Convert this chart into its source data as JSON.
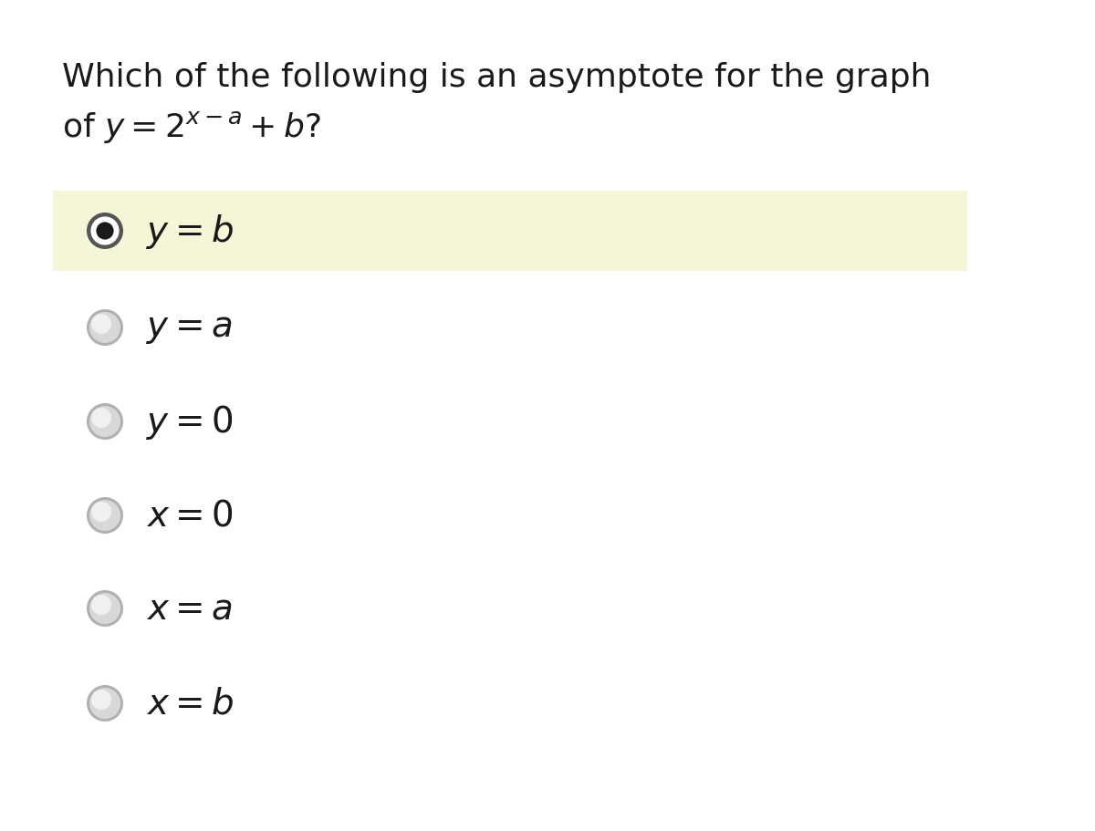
{
  "background_color": "#ffffff",
  "highlight_color": "#f8f8e8",
  "question_line1": "Which of the following is an asymptote for the graph",
  "question_line2": "of $y = 2^{x-a} + b$?",
  "options": [
    {
      "label": "$y = b$",
      "selected": true
    },
    {
      "label": "$y = a$",
      "selected": false
    },
    {
      "label": "$y = 0$",
      "selected": false
    },
    {
      "label": "$x = 0$",
      "selected": false
    },
    {
      "label": "$x = a$",
      "selected": false
    },
    {
      "label": "$x = b$",
      "selected": false
    }
  ],
  "question_fontsize": 26,
  "option_fontsize": 28,
  "text_color": "#1a1a1a",
  "highlight_color_border": "#e8e8cc"
}
